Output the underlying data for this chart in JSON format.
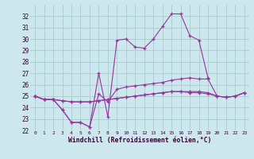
{
  "xlabel": "Windchill (Refroidissement éolien,°C)",
  "background_color": "#cce8ee",
  "grid_color": "#aacccc",
  "line_color": "#993399",
  "x": [
    0,
    1,
    2,
    3,
    4,
    5,
    6,
    7,
    8,
    9,
    10,
    11,
    12,
    13,
    14,
    15,
    16,
    17,
    18,
    19,
    20,
    21,
    22,
    23
  ],
  "line1": [
    25.0,
    24.7,
    24.7,
    23.8,
    22.7,
    22.7,
    22.3,
    27.0,
    23.2,
    29.9,
    30.0,
    29.3,
    29.2,
    30.0,
    31.1,
    32.2,
    32.2,
    30.3,
    29.9,
    26.6,
    null,
    null,
    null,
    null
  ],
  "line2": [
    25.0,
    24.7,
    24.7,
    23.8,
    22.7,
    22.7,
    22.3,
    25.2,
    24.5,
    25.6,
    25.8,
    25.9,
    26.0,
    26.1,
    26.2,
    26.4,
    26.5,
    26.6,
    26.5,
    26.5,
    25.0,
    24.9,
    25.0,
    25.3
  ],
  "line3": [
    25.0,
    24.7,
    24.7,
    24.6,
    24.5,
    24.5,
    24.5,
    24.6,
    24.7,
    24.8,
    24.9,
    25.0,
    25.1,
    25.2,
    25.3,
    25.4,
    25.4,
    25.4,
    25.4,
    25.3,
    25.0,
    24.9,
    25.0,
    25.3
  ],
  "line4": [
    25.0,
    24.7,
    24.7,
    24.6,
    24.5,
    24.5,
    24.5,
    24.6,
    24.7,
    24.8,
    24.9,
    25.0,
    25.1,
    25.2,
    25.3,
    25.4,
    25.4,
    25.3,
    25.3,
    25.2,
    25.0,
    24.9,
    25.0,
    25.3
  ],
  "ylim": [
    22,
    33
  ],
  "yticks": [
    22,
    23,
    24,
    25,
    26,
    27,
    28,
    29,
    30,
    31,
    32
  ],
  "xticks": [
    0,
    1,
    2,
    3,
    4,
    5,
    6,
    7,
    8,
    9,
    10,
    11,
    12,
    13,
    14,
    15,
    16,
    17,
    18,
    19,
    20,
    21,
    22,
    23
  ]
}
